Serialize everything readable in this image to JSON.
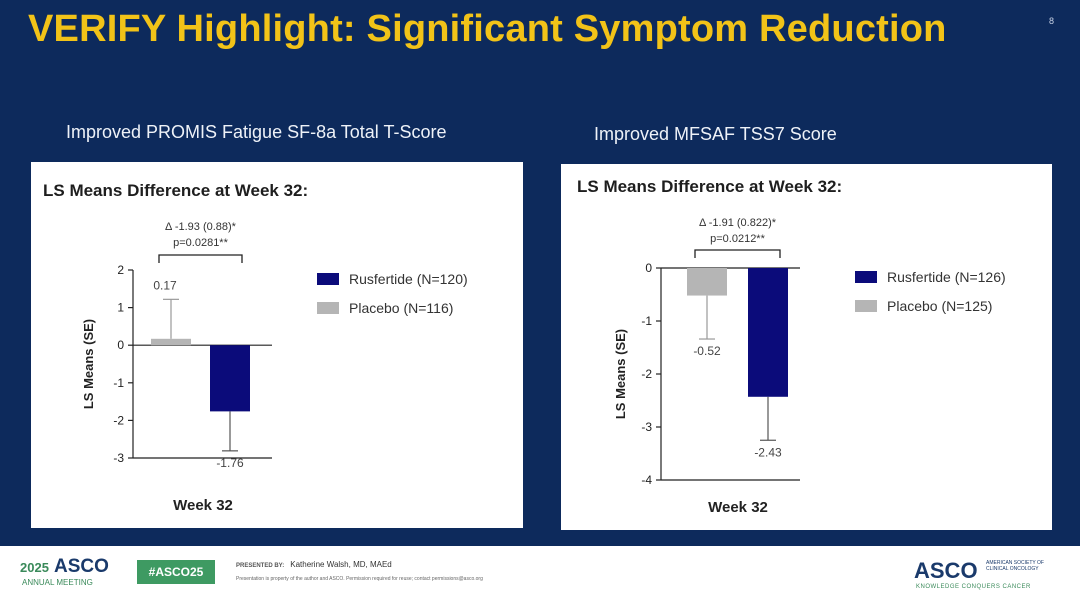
{
  "slide": {
    "title": "VERIFY Highlight: Significant Symptom Reduction",
    "number": "8"
  },
  "colors": {
    "background": "#0d2a5c",
    "title": "#f2c318",
    "rusfertide": "#0b0b7a",
    "placebo": "#b5b5b5"
  },
  "chart_data": [
    {
      "type": "bar",
      "panel_heading": "Improved PROMIS Fatigue SF-8a Total T-Score",
      "title": "LS Means Difference at Week 32:",
      "xlabel": "Week 32",
      "ylabel": "LS Means (SE)",
      "categories": [
        "Week 32"
      ],
      "series": [
        {
          "name": "Placebo (N=116)",
          "color": "#b5b5b5",
          "values": [
            0.17
          ],
          "se": [
            1.05
          ],
          "label": "0.17",
          "label_pos": "above"
        },
        {
          "name": "Rusfertide (N=120)",
          "color": "#0b0b7a",
          "values": [
            -1.76
          ],
          "se": [
            1.05
          ],
          "label": "-1.76",
          "label_pos": "below"
        }
      ],
      "legend_order": [
        "Rusfertide (N=120)",
        "Placebo (N=116)"
      ],
      "ylim": [
        -3,
        2
      ],
      "yticks": [
        2,
        1,
        0,
        -1,
        -2,
        -3
      ],
      "annotation": [
        "Δ -1.93 (0.88)*",
        "p=0.0281**"
      ],
      "legend_position": "right"
    },
    {
      "type": "bar",
      "panel_heading": "Improved MFSAF TSS7 Score",
      "title": "LS Means Difference at Week 32:",
      "xlabel": "Week 32",
      "ylabel": "LS Means (SE)",
      "categories": [
        "Week 32"
      ],
      "series": [
        {
          "name": "Placebo (N=125)",
          "color": "#b5b5b5",
          "values": [
            -0.52
          ],
          "se": [
            0.82
          ],
          "label": "-0.52",
          "label_pos": "below"
        },
        {
          "name": "Rusfertide (N=126)",
          "color": "#0b0b7a",
          "values": [
            -2.43
          ],
          "se": [
            0.82
          ],
          "label": "-2.43",
          "label_pos": "below"
        }
      ],
      "legend_order": [
        "Rusfertide (N=126)",
        "Placebo (N=125)"
      ],
      "ylim": [
        -4,
        0
      ],
      "yticks": [
        0,
        -1,
        -2,
        -3,
        -4
      ],
      "annotation": [
        "Δ -1.91 (0.822)*",
        "p=0.0212**"
      ],
      "legend_position": "right"
    }
  ],
  "footer": {
    "year": "2025",
    "asco": "ASCO",
    "meeting": "ANNUAL MEETING",
    "hashtag": "#ASCO25",
    "presented_by": "PRESENTED BY:",
    "presenter": "Katherine Walsh, MD, MAEd",
    "disclaimer": "Presentation is property of the author and ASCO. Permission required for reuse; contact permissions@asco.org",
    "org": "ASCO",
    "org_full": "AMERICAN SOCIETY OF CLINICAL ONCOLOGY",
    "org_tagline": "KNOWLEDGE CONQUERS CANCER"
  }
}
